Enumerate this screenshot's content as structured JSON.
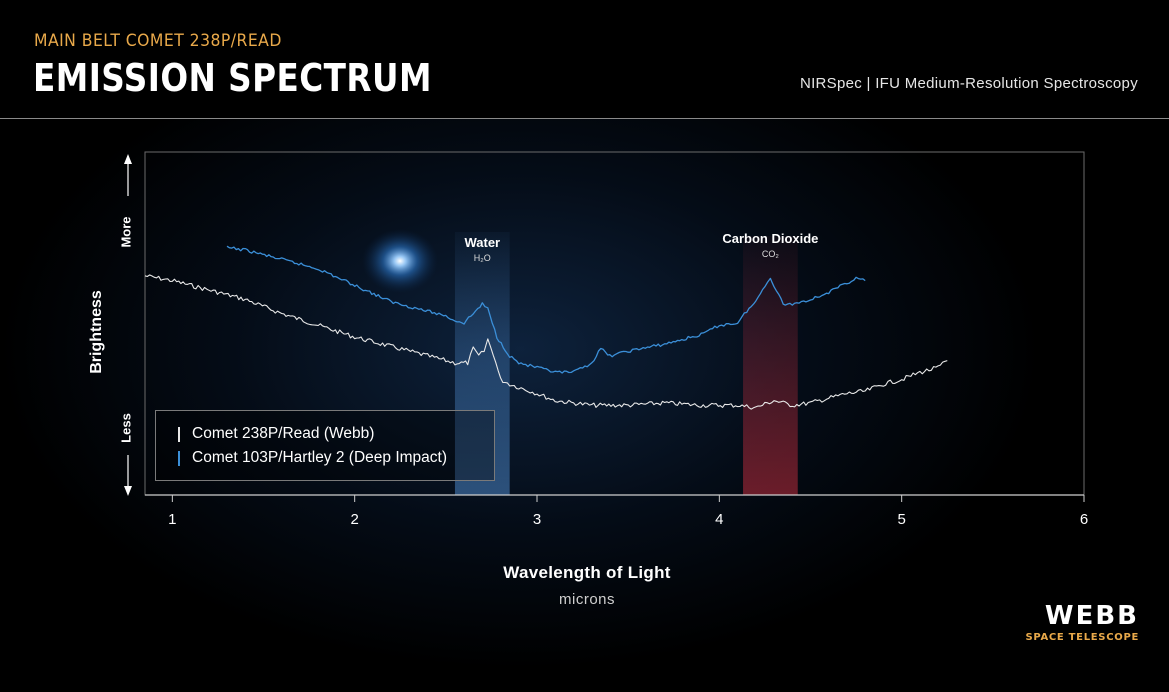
{
  "header": {
    "kicker": "MAIN BELT COMET 238P/READ",
    "title": "EMISSION SPECTRUM",
    "instrument": "NIRSpec | IFU Medium-Resolution Spectroscopy"
  },
  "logo": {
    "word": "WEBB",
    "sub": "SPACE TELESCOPE"
  },
  "colors": {
    "accent": "#e9a94a",
    "webb_series": "#e8e8e8",
    "hartley_series": "#3b8fd8",
    "water_band": "#4b86c8",
    "co2_band": "#b02a3a"
  },
  "chart_data": {
    "type": "line",
    "title": "EMISSION SPECTRUM",
    "xlabel": "Wavelength of Light",
    "xunits": "microns",
    "ylabel": "Brightness",
    "y_more": "More",
    "y_less": "Less",
    "xlim": [
      0.85,
      6.0
    ],
    "xticks": [
      1,
      2,
      3,
      4,
      5,
      6
    ],
    "yscale": "relative (no numeric scale)",
    "legend": "bottom-left",
    "bands": [
      {
        "name": "Water",
        "formula": "H₂O",
        "range": [
          2.55,
          2.85
        ],
        "color": "#4b86c8"
      },
      {
        "name": "Carbon Dioxide",
        "formula": "CO₂",
        "range": [
          4.13,
          4.43
        ],
        "color": "#b02a3a"
      }
    ],
    "series": [
      {
        "name": "Comet 238P/Read (Webb)",
        "color": "#e8e8e8",
        "x": [
          0.85,
          1.0,
          1.2,
          1.4,
          1.6,
          1.8,
          2.0,
          2.2,
          2.4,
          2.55,
          2.62,
          2.65,
          2.68,
          2.71,
          2.73,
          2.76,
          2.8,
          2.85,
          3.0,
          3.1,
          3.2,
          3.3,
          3.5,
          3.7,
          3.9,
          4.1,
          4.2,
          4.3,
          4.4,
          4.5,
          4.6,
          4.7,
          4.8,
          4.9,
          5.0,
          5.1,
          5.2,
          5.25
        ],
        "y": [
          0.74,
          0.72,
          0.68,
          0.64,
          0.58,
          0.53,
          0.48,
          0.44,
          0.4,
          0.37,
          0.37,
          0.43,
          0.4,
          0.42,
          0.47,
          0.41,
          0.3,
          0.28,
          0.24,
          0.21,
          0.2,
          0.19,
          0.19,
          0.2,
          0.19,
          0.19,
          0.18,
          0.21,
          0.19,
          0.2,
          0.22,
          0.24,
          0.25,
          0.28,
          0.3,
          0.33,
          0.35,
          0.38
        ]
      },
      {
        "name": "Comet 103P/Hartley 2 (Deep Impact)",
        "color": "#3b8fd8",
        "x": [
          1.3,
          1.4,
          1.6,
          1.8,
          2.0,
          2.2,
          2.4,
          2.5,
          2.55,
          2.6,
          2.65,
          2.7,
          2.73,
          2.78,
          2.85,
          2.9,
          3.0,
          3.1,
          3.2,
          3.3,
          3.35,
          3.4,
          3.5,
          3.7,
          3.9,
          4.0,
          4.1,
          4.15,
          4.2,
          4.25,
          4.28,
          4.3,
          4.35,
          4.4,
          4.5,
          4.6,
          4.7,
          4.75,
          4.8
        ],
        "y": [
          0.86,
          0.85,
          0.81,
          0.77,
          0.7,
          0.63,
          0.59,
          0.57,
          0.55,
          0.54,
          0.58,
          0.62,
          0.6,
          0.48,
          0.4,
          0.37,
          0.35,
          0.33,
          0.33,
          0.37,
          0.43,
          0.4,
          0.42,
          0.45,
          0.49,
          0.53,
          0.54,
          0.59,
          0.63,
          0.7,
          0.73,
          0.7,
          0.62,
          0.62,
          0.64,
          0.67,
          0.71,
          0.73,
          0.72
        ]
      }
    ]
  }
}
